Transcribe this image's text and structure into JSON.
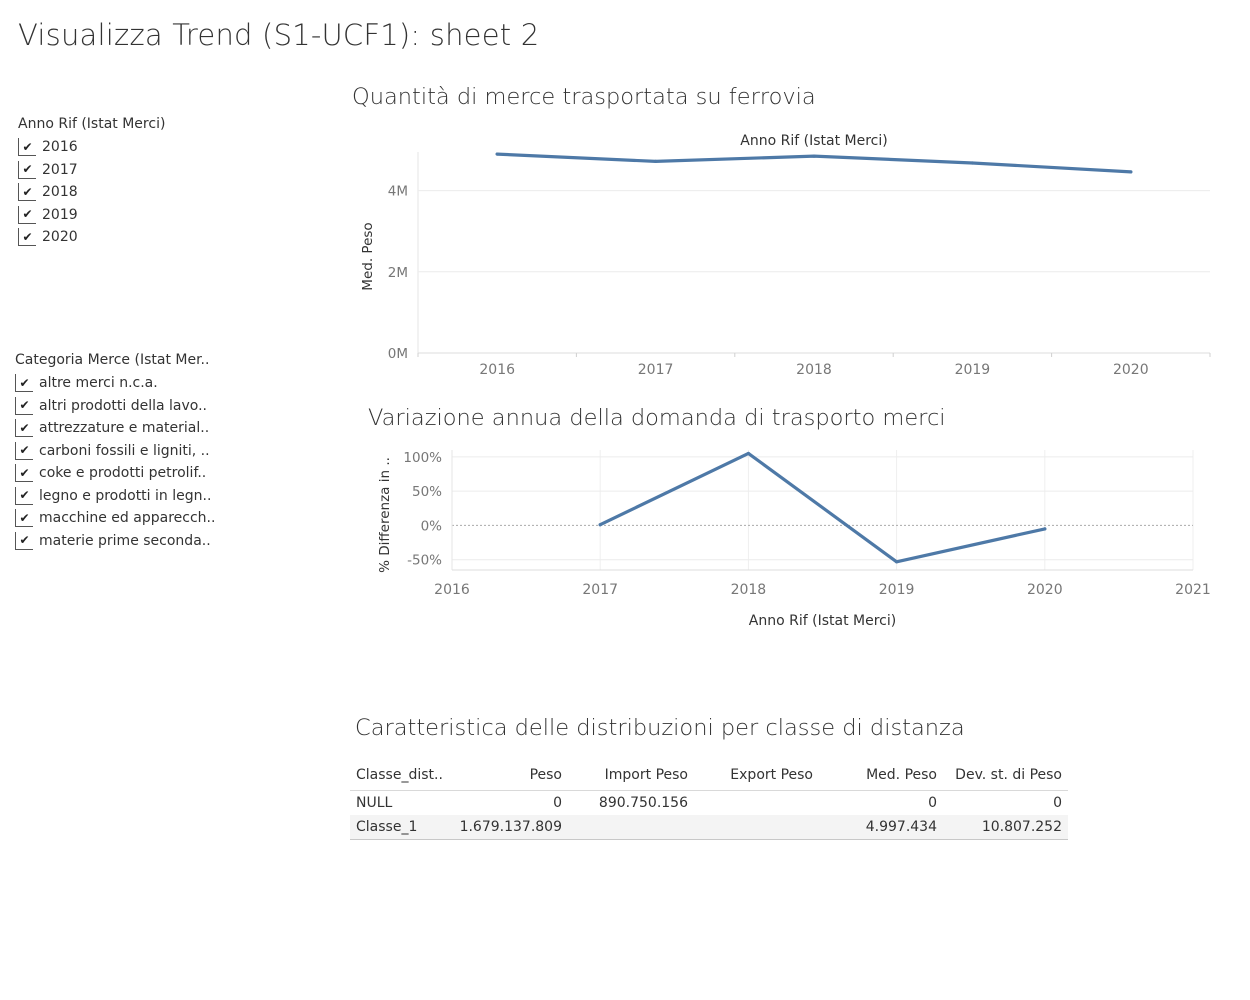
{
  "dashboard": {
    "title": "Visualizza Trend (S1-UCF1): sheet 2"
  },
  "filters": {
    "anno": {
      "title": "Anno Rif (Istat Merci)",
      "items": [
        {
          "label": "2016",
          "checked": true
        },
        {
          "label": "2017",
          "checked": true
        },
        {
          "label": "2018",
          "checked": true
        },
        {
          "label": "2019",
          "checked": true
        },
        {
          "label": "2020",
          "checked": true
        }
      ]
    },
    "categoria": {
      "title": "Categoria Merce (Istat Mer..",
      "items": [
        {
          "label": "altre merci n.c.a.",
          "checked": true
        },
        {
          "label": "altri prodotti della lavo..",
          "checked": true
        },
        {
          "label": "attrezzature e material..",
          "checked": true
        },
        {
          "label": "carboni fossili e ligniti, ..",
          "checked": true
        },
        {
          "label": "coke e prodotti petrolif..",
          "checked": true
        },
        {
          "label": "legno e prodotti in legn..",
          "checked": true
        },
        {
          "label": "macchine ed apparecch..",
          "checked": true
        },
        {
          "label": "materie prime seconda..",
          "checked": true
        }
      ]
    },
    "check_glyph": "✔"
  },
  "chart_data": [
    {
      "id": "quantita",
      "type": "line",
      "title": "Quantità di merce trasportata su ferrovia",
      "top_axis_label": "Anno Rif (Istat Merci)",
      "xlabel": "",
      "ylabel": "Med. Peso",
      "x": [
        2016,
        2017,
        2018,
        2019,
        2020
      ],
      "x_ticks": [
        "2016",
        "2017",
        "2018",
        "2019",
        "2020"
      ],
      "y": [
        4900000,
        4720000,
        4850000,
        4680000,
        4460000
      ],
      "ylim": [
        0,
        5000000
      ],
      "y_ticks": [
        {
          "value": 0,
          "label": "0M"
        },
        {
          "value": 2000000,
          "label": "2M"
        },
        {
          "value": 4000000,
          "label": "4M"
        }
      ],
      "grid": true,
      "color": "#4e79a7"
    },
    {
      "id": "variazione",
      "type": "line",
      "title": "Variazione annua della domanda di trasporto merci",
      "xlabel": "Anno Rif (Istat Merci)",
      "ylabel": "% Differenza in ..",
      "x": [
        2017,
        2018,
        2019,
        2020
      ],
      "x_ticks": [
        "2016",
        "2017",
        "2018",
        "2019",
        "2020",
        "2021"
      ],
      "xlim": [
        2016,
        2021
      ],
      "y": [
        1,
        105,
        -53,
        -5
      ],
      "ylim": [
        -65,
        110
      ],
      "y_ticks": [
        {
          "value": -50,
          "label": "-50%"
        },
        {
          "value": 0,
          "label": "0%"
        },
        {
          "value": 50,
          "label": "50%"
        },
        {
          "value": 100,
          "label": "100%"
        }
      ],
      "grid": true,
      "color": "#4e79a7"
    }
  ],
  "table": {
    "title": "Caratteristica delle distribuzioni per classe di distanza",
    "columns": [
      "Classe_dist..",
      "Peso",
      "Import Peso",
      "Export Peso",
      "Med. Peso",
      "Dev. st. di Peso"
    ],
    "rows": [
      [
        "NULL",
        "0",
        "890.750.156",
        "",
        "0",
        "0"
      ],
      [
        "Classe_1",
        "1.679.137.809",
        "",
        "",
        "4.997.434",
        "10.807.252"
      ]
    ]
  }
}
